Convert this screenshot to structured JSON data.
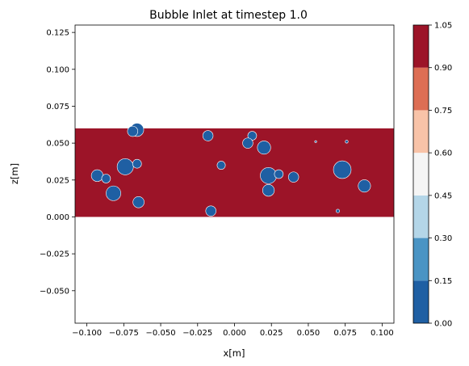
{
  "chart_data": {
    "type": "heatmap",
    "title": "Bubble Inlet at timestep 1.0",
    "xlabel": "x[m]",
    "ylabel": "z[m]",
    "xlim": [
      -0.108,
      0.108
    ],
    "ylim": [
      -0.072,
      0.13
    ],
    "xticks": [
      {
        "v": -0.1,
        "label": "−0.100"
      },
      {
        "v": -0.075,
        "label": "−0.075"
      },
      {
        "v": -0.05,
        "label": "−0.050"
      },
      {
        "v": -0.025,
        "label": "−0.025"
      },
      {
        "v": 0.0,
        "label": "0.000"
      },
      {
        "v": 0.025,
        "label": "0.025"
      },
      {
        "v": 0.05,
        "label": "0.050"
      },
      {
        "v": 0.075,
        "label": "0.075"
      },
      {
        "v": 0.1,
        "label": "0.100"
      }
    ],
    "yticks": [
      {
        "v": -0.05,
        "label": "−0.050"
      },
      {
        "v": -0.025,
        "label": "−0.025"
      },
      {
        "v": 0.0,
        "label": "0.000"
      },
      {
        "v": 0.025,
        "label": "0.025"
      },
      {
        "v": 0.05,
        "label": "0.050"
      },
      {
        "v": 0.075,
        "label": "0.075"
      },
      {
        "v": 0.1,
        "label": "0.100"
      },
      {
        "v": 0.125,
        "label": "0.125"
      }
    ],
    "domain": {
      "x": [
        -0.108,
        0.108
      ],
      "z": [
        0.0,
        0.06
      ],
      "value": 1.0
    },
    "bubbles": [
      {
        "x": -0.066,
        "z": 0.059,
        "r": 0.0045,
        "value": 0.0
      },
      {
        "x": -0.069,
        "z": 0.058,
        "r": 0.0035,
        "value": 0.0
      },
      {
        "x": -0.018,
        "z": 0.055,
        "r": 0.0035,
        "value": 0.0
      },
      {
        "x": 0.012,
        "z": 0.055,
        "r": 0.003,
        "value": 0.0
      },
      {
        "x": 0.009,
        "z": 0.05,
        "r": 0.0035,
        "value": 0.0
      },
      {
        "x": 0.02,
        "z": 0.047,
        "r": 0.0045,
        "value": 0.0
      },
      {
        "x": 0.055,
        "z": 0.051,
        "r": 0.0007,
        "value": 0.0
      },
      {
        "x": 0.076,
        "z": 0.051,
        "r": 0.001,
        "value": 0.0
      },
      {
        "x": -0.074,
        "z": 0.034,
        "r": 0.0055,
        "value": 0.0
      },
      {
        "x": -0.066,
        "z": 0.036,
        "r": 0.003,
        "value": 0.0
      },
      {
        "x": -0.093,
        "z": 0.028,
        "r": 0.004,
        "value": 0.0
      },
      {
        "x": -0.087,
        "z": 0.026,
        "r": 0.003,
        "value": 0.0
      },
      {
        "x": -0.082,
        "z": 0.016,
        "r": 0.005,
        "value": 0.0
      },
      {
        "x": -0.065,
        "z": 0.01,
        "r": 0.0038,
        "value": 0.0
      },
      {
        "x": -0.009,
        "z": 0.035,
        "r": 0.0028,
        "value": 0.0
      },
      {
        "x": 0.023,
        "z": 0.028,
        "r": 0.0055,
        "value": 0.0
      },
      {
        "x": 0.03,
        "z": 0.029,
        "r": 0.003,
        "value": 0.0
      },
      {
        "x": 0.023,
        "z": 0.018,
        "r": 0.004,
        "value": 0.0
      },
      {
        "x": 0.04,
        "z": 0.027,
        "r": 0.0035,
        "value": 0.0
      },
      {
        "x": 0.073,
        "z": 0.032,
        "r": 0.006,
        "value": 0.0
      },
      {
        "x": 0.088,
        "z": 0.021,
        "r": 0.0042,
        "value": 0.0
      },
      {
        "x": -0.016,
        "z": 0.004,
        "r": 0.0035,
        "value": 0.0
      },
      {
        "x": 0.07,
        "z": 0.004,
        "r": 0.0012,
        "value": 0.0
      }
    ],
    "colorbar": {
      "levels": [
        0.0,
        0.15,
        0.3,
        0.45,
        0.6,
        0.75,
        0.9,
        1.05
      ],
      "labels": [
        "0.00",
        "0.15",
        "0.30",
        "0.45",
        "0.60",
        "0.75",
        "0.90",
        "1.05"
      ],
      "colors": [
        "#1f5fa3",
        "#4a94c4",
        "#b4d6e8",
        "#f5f5f5",
        "#f8c3a8",
        "#dd6e54",
        "#9c1428"
      ]
    }
  }
}
